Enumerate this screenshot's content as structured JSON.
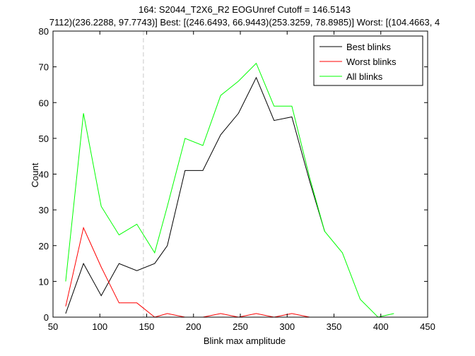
{
  "chart_data": {
    "type": "line",
    "title_lines": [
      "164: S2044_T2X6_R2 EOGUnref Cutoff = 146.5143",
      "7112)(236.2288, 97.7743)] Best: [(246.6493, 66.9443)(253.3259, 78.8985)] Worst: [(104.4663, 4"
    ],
    "xlabel": "Blink max amplitude",
    "ylabel": "Count",
    "xlim": [
      50,
      450
    ],
    "ylim": [
      0,
      80
    ],
    "xticks": [
      50,
      100,
      150,
      200,
      250,
      300,
      350,
      400,
      450
    ],
    "yticks": [
      0,
      10,
      20,
      30,
      40,
      50,
      60,
      70,
      80
    ],
    "cutoff": 146.5143,
    "cutoff_color": "#c8c8c8",
    "legend_position": "top-right",
    "series": [
      {
        "name": "Best blinks",
        "color": "#000000",
        "x": [
          63.5,
          82.5,
          101.5,
          120.5,
          139.5,
          158.5,
          172,
          191,
          210,
          229,
          248,
          267,
          286,
          305,
          324,
          340
        ],
        "y": [
          1,
          15,
          6,
          15,
          13,
          15,
          20,
          41,
          41,
          51,
          57,
          67,
          55,
          56,
          38,
          24
        ]
      },
      {
        "name": "Worst blinks",
        "color": "#ff0000",
        "x": [
          63.5,
          82.5,
          101.5,
          120.5,
          139.5,
          158.5,
          172,
          191,
          210,
          229,
          248,
          267,
          286,
          305,
          324
        ],
        "y": [
          3,
          25,
          14,
          4,
          4,
          0,
          1,
          0,
          0,
          1,
          0,
          1,
          0,
          1,
          0
        ]
      },
      {
        "name": "All blinks",
        "color": "#00ff00",
        "x": [
          63.5,
          82.5,
          101.5,
          120.5,
          139.5,
          158.5,
          172,
          191,
          210,
          229,
          248,
          267,
          286,
          305,
          324,
          340,
          359,
          378,
          397,
          414
        ],
        "y": [
          10,
          57,
          31,
          23,
          26,
          18,
          31,
          50,
          48,
          62,
          66,
          71,
          59,
          59,
          39,
          24,
          18,
          5,
          0,
          1
        ]
      }
    ]
  }
}
